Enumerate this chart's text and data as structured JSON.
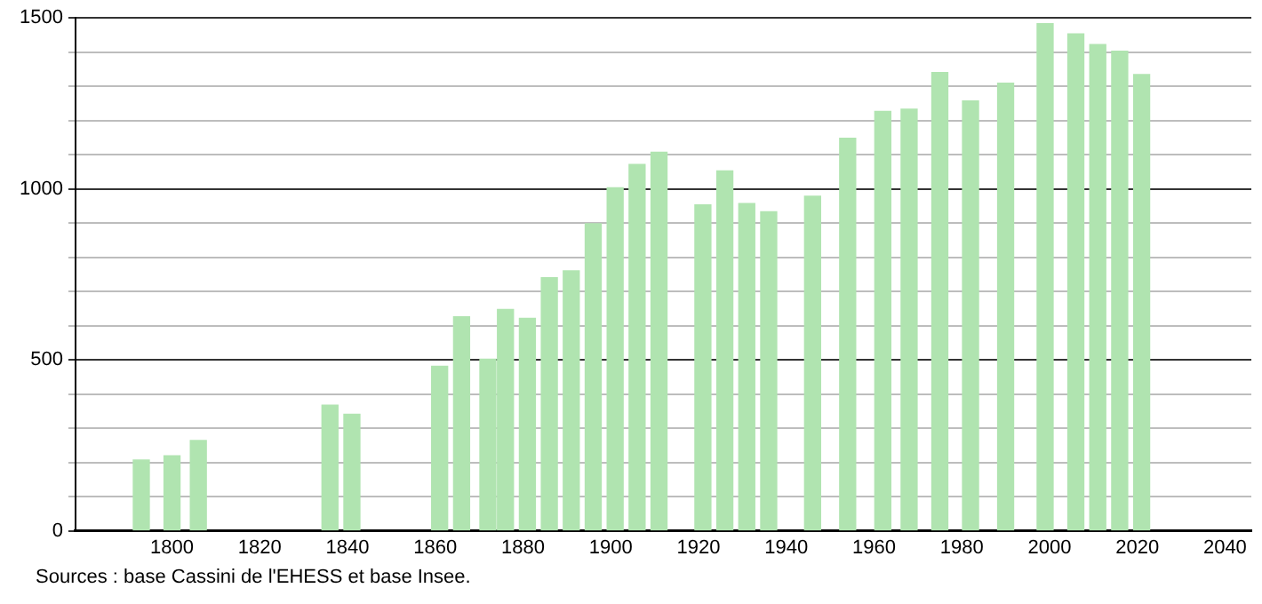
{
  "chart_data": {
    "type": "bar",
    "x": [
      1793,
      1800,
      1806,
      1836,
      1841,
      1861,
      1866,
      1872,
      1876,
      1881,
      1886,
      1891,
      1896,
      1901,
      1906,
      1911,
      1921,
      1926,
      1931,
      1936,
      1946,
      1954,
      1962,
      1968,
      1975,
      1982,
      1990,
      1999,
      2006,
      2011,
      2016,
      2021
    ],
    "values": [
      207,
      219,
      264,
      367,
      341,
      481,
      626,
      502,
      647,
      621,
      740,
      760,
      898,
      1003,
      1071,
      1107,
      953,
      1052,
      957,
      933,
      978,
      1148,
      1226,
      1233,
      1340,
      1257,
      1309,
      1483,
      1453,
      1422,
      1402,
      1334
    ],
    "color": "#b0e4b0",
    "xlim": [
      1778,
      2046
    ],
    "xticks": [
      1800,
      1820,
      1840,
      1860,
      1880,
      1900,
      1920,
      1940,
      1960,
      1980,
      2000,
      2020,
      2040
    ],
    "ylim": [
      0,
      1500
    ],
    "yticks": [
      0,
      {
        "value": 100,
        "label": null
      },
      {
        "value": 200,
        "label": null
      },
      {
        "value": 300,
        "label": null
      },
      {
        "value": 400,
        "label": null
      },
      500,
      {
        "value": 600,
        "label": null
      },
      {
        "value": 700,
        "label": null
      },
      {
        "value": 800,
        "label": null
      },
      {
        "value": 900,
        "label": null
      },
      1000,
      {
        "value": 1100,
        "label": null
      },
      {
        "value": 1200,
        "label": null
      },
      {
        "value": 1300,
        "label": null
      },
      {
        "value": 1400,
        "label": null
      },
      1500
    ],
    "grid": "y",
    "legend": false,
    "annotations": [
      "Sources : base Cassini de l'EHESS et base Insee."
    ]
  }
}
